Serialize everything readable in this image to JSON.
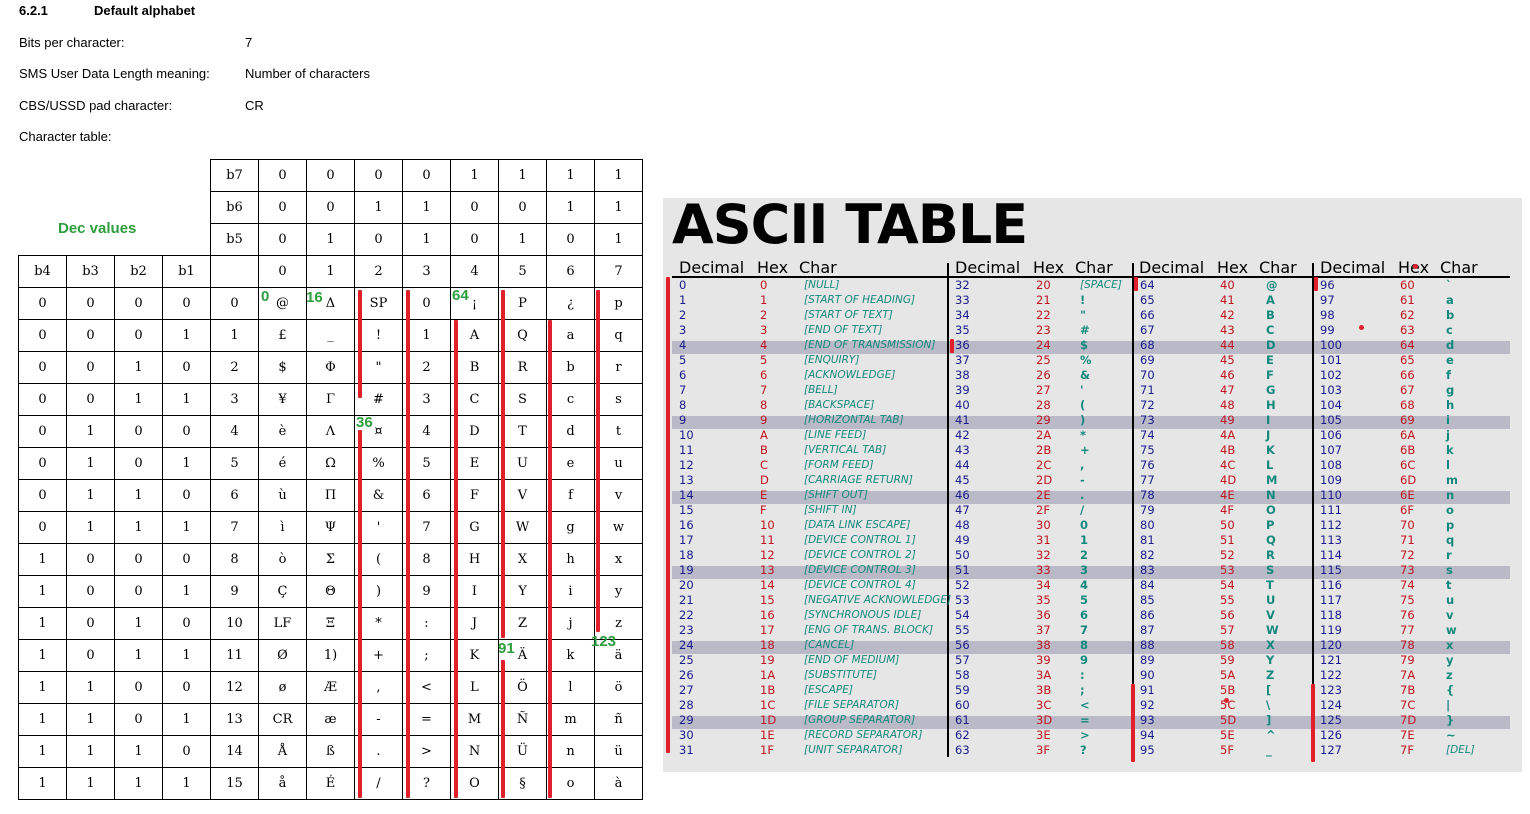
{
  "section": {
    "number": "6.2.1",
    "title": "Default alphabet"
  },
  "properties": [
    {
      "label": "Bits per character:",
      "value": "7"
    },
    {
      "label": "SMS User Data Length meaning:",
      "value": "Number of characters"
    },
    {
      "label": "CBS/USSD pad character:",
      "value": "CR"
    },
    {
      "label": "Character table:",
      "value": ""
    }
  ],
  "dec_values_caption": "Dec values",
  "gsm_table": {
    "bit_rows": [
      {
        "label": "b7",
        "values": [
          "0",
          "0",
          "0",
          "0",
          "1",
          "1",
          "1",
          "1"
        ]
      },
      {
        "label": "b6",
        "values": [
          "0",
          "0",
          "1",
          "1",
          "0",
          "0",
          "1",
          "1"
        ]
      },
      {
        "label": "b5",
        "values": [
          "0",
          "1",
          "0",
          "1",
          "0",
          "1",
          "0",
          "1"
        ]
      }
    ],
    "low_bit_labels": [
      "b4",
      "b3",
      "b2",
      "b1"
    ],
    "column_numbers": [
      "0",
      "1",
      "2",
      "3",
      "4",
      "5",
      "6",
      "7"
    ],
    "rows": [
      {
        "bits": [
          "0",
          "0",
          "0",
          "0"
        ],
        "row": "0",
        "chars": [
          "@",
          "Δ",
          "SP",
          "0",
          "¡",
          "P",
          "¿",
          "p"
        ]
      },
      {
        "bits": [
          "0",
          "0",
          "0",
          "1"
        ],
        "row": "1",
        "chars": [
          "£",
          "_",
          "!",
          "1",
          "A",
          "Q",
          "a",
          "q"
        ]
      },
      {
        "bits": [
          "0",
          "0",
          "1",
          "0"
        ],
        "row": "2",
        "chars": [
          "$",
          "Φ",
          "\"",
          "2",
          "B",
          "R",
          "b",
          "r"
        ]
      },
      {
        "bits": [
          "0",
          "0",
          "1",
          "1"
        ],
        "row": "3",
        "chars": [
          "¥",
          "Γ",
          "#",
          "3",
          "C",
          "S",
          "c",
          "s"
        ]
      },
      {
        "bits": [
          "0",
          "1",
          "0",
          "0"
        ],
        "row": "4",
        "chars": [
          "è",
          "Λ",
          "¤",
          "4",
          "D",
          "T",
          "d",
          "t"
        ]
      },
      {
        "bits": [
          "0",
          "1",
          "0",
          "1"
        ],
        "row": "5",
        "chars": [
          "é",
          "Ω",
          "%",
          "5",
          "E",
          "U",
          "e",
          "u"
        ]
      },
      {
        "bits": [
          "0",
          "1",
          "1",
          "0"
        ],
        "row": "6",
        "chars": [
          "ù",
          "Π",
          "&",
          "6",
          "F",
          "V",
          "f",
          "v"
        ]
      },
      {
        "bits": [
          "0",
          "1",
          "1",
          "1"
        ],
        "row": "7",
        "chars": [
          "ì",
          "Ψ",
          "'",
          "7",
          "G",
          "W",
          "g",
          "w"
        ]
      },
      {
        "bits": [
          "1",
          "0",
          "0",
          "0"
        ],
        "row": "8",
        "chars": [
          "ò",
          "Σ",
          "(",
          "8",
          "H",
          "X",
          "h",
          "x"
        ]
      },
      {
        "bits": [
          "1",
          "0",
          "0",
          "1"
        ],
        "row": "9",
        "chars": [
          "Ç",
          "Θ",
          ")",
          "9",
          "I",
          "Y",
          "i",
          "y"
        ]
      },
      {
        "bits": [
          "1",
          "0",
          "1",
          "0"
        ],
        "row": "10",
        "chars": [
          "LF",
          "Ξ",
          "*",
          ":",
          "J",
          "Z",
          "j",
          "z"
        ]
      },
      {
        "bits": [
          "1",
          "0",
          "1",
          "1"
        ],
        "row": "11",
        "chars": [
          "Ø",
          "1)",
          "+",
          ";",
          "K",
          "Ä",
          "k",
          "ä"
        ]
      },
      {
        "bits": [
          "1",
          "1",
          "0",
          "0"
        ],
        "row": "12",
        "chars": [
          "ø",
          "Æ",
          ",",
          "<",
          "L",
          "Ö",
          "l",
          "ö"
        ]
      },
      {
        "bits": [
          "1",
          "1",
          "0",
          "1"
        ],
        "row": "13",
        "chars": [
          "CR",
          "æ",
          "-",
          "=",
          "M",
          "Ñ",
          "m",
          "ñ"
        ]
      },
      {
        "bits": [
          "1",
          "1",
          "1",
          "0"
        ],
        "row": "14",
        "chars": [
          "Å",
          "ß",
          ".",
          ">",
          "N",
          "Ü",
          "n",
          "ü"
        ]
      },
      {
        "bits": [
          "1",
          "1",
          "1",
          "1"
        ],
        "row": "15",
        "chars": [
          "å",
          "É",
          "/",
          "?",
          "O",
          "§",
          "o",
          "à"
        ]
      }
    ]
  },
  "annotations": [
    "0",
    "16",
    "64",
    "36",
    "91",
    "123"
  ],
  "ascii": {
    "title": "ASCII TABLE",
    "headers": [
      [
        "Decimal",
        "Hex",
        "Char"
      ],
      [
        "Decimal",
        "Hex",
        "Char"
      ],
      [
        "Decimal",
        "Hex",
        "Char"
      ],
      [
        "Decimal",
        "Hex",
        "Char"
      ]
    ],
    "columns": [
      [
        [
          "0",
          "0",
          "[NULL]"
        ],
        [
          "1",
          "1",
          "[START OF HEADING]"
        ],
        [
          "2",
          "2",
          "[START OF TEXT]"
        ],
        [
          "3",
          "3",
          "[END OF TEXT]"
        ],
        [
          "4",
          "4",
          "[END OF TRANSMISSION]"
        ],
        [
          "5",
          "5",
          "[ENQUIRY]"
        ],
        [
          "6",
          "6",
          "[ACKNOWLEDGE]"
        ],
        [
          "7",
          "7",
          "[BELL]"
        ],
        [
          "8",
          "8",
          "[BACKSPACE]"
        ],
        [
          "9",
          "9",
          "[HORIZONTAL TAB]"
        ],
        [
          "10",
          "A",
          "[LINE FEED]"
        ],
        [
          "11",
          "B",
          "[VERTICAL TAB]"
        ],
        [
          "12",
          "C",
          "[FORM FEED]"
        ],
        [
          "13",
          "D",
          "[CARRIAGE RETURN]"
        ],
        [
          "14",
          "E",
          "[SHIFT OUT]"
        ],
        [
          "15",
          "F",
          "[SHIFT IN]"
        ],
        [
          "16",
          "10",
          "[DATA LINK ESCAPE]"
        ],
        [
          "17",
          "11",
          "[DEVICE CONTROL 1]"
        ],
        [
          "18",
          "12",
          "[DEVICE CONTROL 2]"
        ],
        [
          "19",
          "13",
          "[DEVICE CONTROL 3]"
        ],
        [
          "20",
          "14",
          "[DEVICE CONTROL 4]"
        ],
        [
          "21",
          "15",
          "[NEGATIVE ACKNOWLEDGE]"
        ],
        [
          "22",
          "16",
          "[SYNCHRONOUS IDLE]"
        ],
        [
          "23",
          "17",
          "[ENG OF TRANS. BLOCK]"
        ],
        [
          "24",
          "18",
          "[CANCEL]"
        ],
        [
          "25",
          "19",
          "[END OF MEDIUM]"
        ],
        [
          "26",
          "1A",
          "[SUBSTITUTE]"
        ],
        [
          "27",
          "1B",
          "[ESCAPE]"
        ],
        [
          "28",
          "1C",
          "[FILE SEPARATOR]"
        ],
        [
          "29",
          "1D",
          "[GROUP SEPARATOR]"
        ],
        [
          "30",
          "1E",
          "[RECORD SEPARATOR]"
        ],
        [
          "31",
          "1F",
          "[UNIT SEPARATOR]"
        ]
      ],
      [
        [
          "32",
          "20",
          "[SPACE]"
        ],
        [
          "33",
          "21",
          "!"
        ],
        [
          "34",
          "22",
          "\""
        ],
        [
          "35",
          "23",
          "#"
        ],
        [
          "36",
          "24",
          "$"
        ],
        [
          "37",
          "25",
          "%"
        ],
        [
          "38",
          "26",
          "&"
        ],
        [
          "39",
          "27",
          "'"
        ],
        [
          "40",
          "28",
          "("
        ],
        [
          "41",
          "29",
          ")"
        ],
        [
          "42",
          "2A",
          "*"
        ],
        [
          "43",
          "2B",
          "+"
        ],
        [
          "44",
          "2C",
          ","
        ],
        [
          "45",
          "2D",
          "-"
        ],
        [
          "46",
          "2E",
          "."
        ],
        [
          "47",
          "2F",
          "/"
        ],
        [
          "48",
          "30",
          "0"
        ],
        [
          "49",
          "31",
          "1"
        ],
        [
          "50",
          "32",
          "2"
        ],
        [
          "51",
          "33",
          "3"
        ],
        [
          "52",
          "34",
          "4"
        ],
        [
          "53",
          "35",
          "5"
        ],
        [
          "54",
          "36",
          "6"
        ],
        [
          "55",
          "37",
          "7"
        ],
        [
          "56",
          "38",
          "8"
        ],
        [
          "57",
          "39",
          "9"
        ],
        [
          "58",
          "3A",
          ":"
        ],
        [
          "59",
          "3B",
          ";"
        ],
        [
          "60",
          "3C",
          "<"
        ],
        [
          "61",
          "3D",
          "="
        ],
        [
          "62",
          "3E",
          ">"
        ],
        [
          "63",
          "3F",
          "?"
        ]
      ],
      [
        [
          "64",
          "40",
          "@"
        ],
        [
          "65",
          "41",
          "A"
        ],
        [
          "66",
          "42",
          "B"
        ],
        [
          "67",
          "43",
          "C"
        ],
        [
          "68",
          "44",
          "D"
        ],
        [
          "69",
          "45",
          "E"
        ],
        [
          "70",
          "46",
          "F"
        ],
        [
          "71",
          "47",
          "G"
        ],
        [
          "72",
          "48",
          "H"
        ],
        [
          "73",
          "49",
          "I"
        ],
        [
          "74",
          "4A",
          "J"
        ],
        [
          "75",
          "4B",
          "K"
        ],
        [
          "76",
          "4C",
          "L"
        ],
        [
          "77",
          "4D",
          "M"
        ],
        [
          "78",
          "4E",
          "N"
        ],
        [
          "79",
          "4F",
          "O"
        ],
        [
          "80",
          "50",
          "P"
        ],
        [
          "81",
          "51",
          "Q"
        ],
        [
          "82",
          "52",
          "R"
        ],
        [
          "83",
          "53",
          "S"
        ],
        [
          "84",
          "54",
          "T"
        ],
        [
          "85",
          "55",
          "U"
        ],
        [
          "86",
          "56",
          "V"
        ],
        [
          "87",
          "57",
          "W"
        ],
        [
          "88",
          "58",
          "X"
        ],
        [
          "89",
          "59",
          "Y"
        ],
        [
          "90",
          "5A",
          "Z"
        ],
        [
          "91",
          "5B",
          "["
        ],
        [
          "92",
          "5C",
          "\\"
        ],
        [
          "93",
          "5D",
          "]"
        ],
        [
          "94",
          "5E",
          "^"
        ],
        [
          "95",
          "5F",
          "_"
        ]
      ],
      [
        [
          "96",
          "60",
          "`"
        ],
        [
          "97",
          "61",
          "a"
        ],
        [
          "98",
          "62",
          "b"
        ],
        [
          "99",
          "63",
          "c"
        ],
        [
          "100",
          "64",
          "d"
        ],
        [
          "101",
          "65",
          "e"
        ],
        [
          "102",
          "66",
          "f"
        ],
        [
          "103",
          "67",
          "g"
        ],
        [
          "104",
          "68",
          "h"
        ],
        [
          "105",
          "69",
          "i"
        ],
        [
          "106",
          "6A",
          "j"
        ],
        [
          "107",
          "6B",
          "k"
        ],
        [
          "108",
          "6C",
          "l"
        ],
        [
          "109",
          "6D",
          "m"
        ],
        [
          "110",
          "6E",
          "n"
        ],
        [
          "111",
          "6F",
          "o"
        ],
        [
          "112",
          "70",
          "p"
        ],
        [
          "113",
          "71",
          "q"
        ],
        [
          "114",
          "72",
          "r"
        ],
        [
          "115",
          "73",
          "s"
        ],
        [
          "116",
          "74",
          "t"
        ],
        [
          "117",
          "75",
          "u"
        ],
        [
          "118",
          "76",
          "v"
        ],
        [
          "119",
          "77",
          "w"
        ],
        [
          "120",
          "78",
          "x"
        ],
        [
          "121",
          "79",
          "y"
        ],
        [
          "122",
          "7A",
          "z"
        ],
        [
          "123",
          "7B",
          "{"
        ],
        [
          "124",
          "7C",
          "|"
        ],
        [
          "125",
          "7D",
          "}"
        ],
        [
          "126",
          "7E",
          "~"
        ],
        [
          "127",
          "7F",
          "[DEL]"
        ]
      ]
    ],
    "highlighted_rows": [
      4,
      9,
      14,
      19,
      24,
      29
    ]
  },
  "colors": {
    "annotation_green": "#2e9e3e",
    "marker_red": "#e0202a",
    "decimal_blue": "#1a1a8c",
    "hex_red": "#c0141e",
    "char_teal": "#13897d",
    "band_gray": "#b9b9c8",
    "panel_gray": "#e6e6e6"
  }
}
